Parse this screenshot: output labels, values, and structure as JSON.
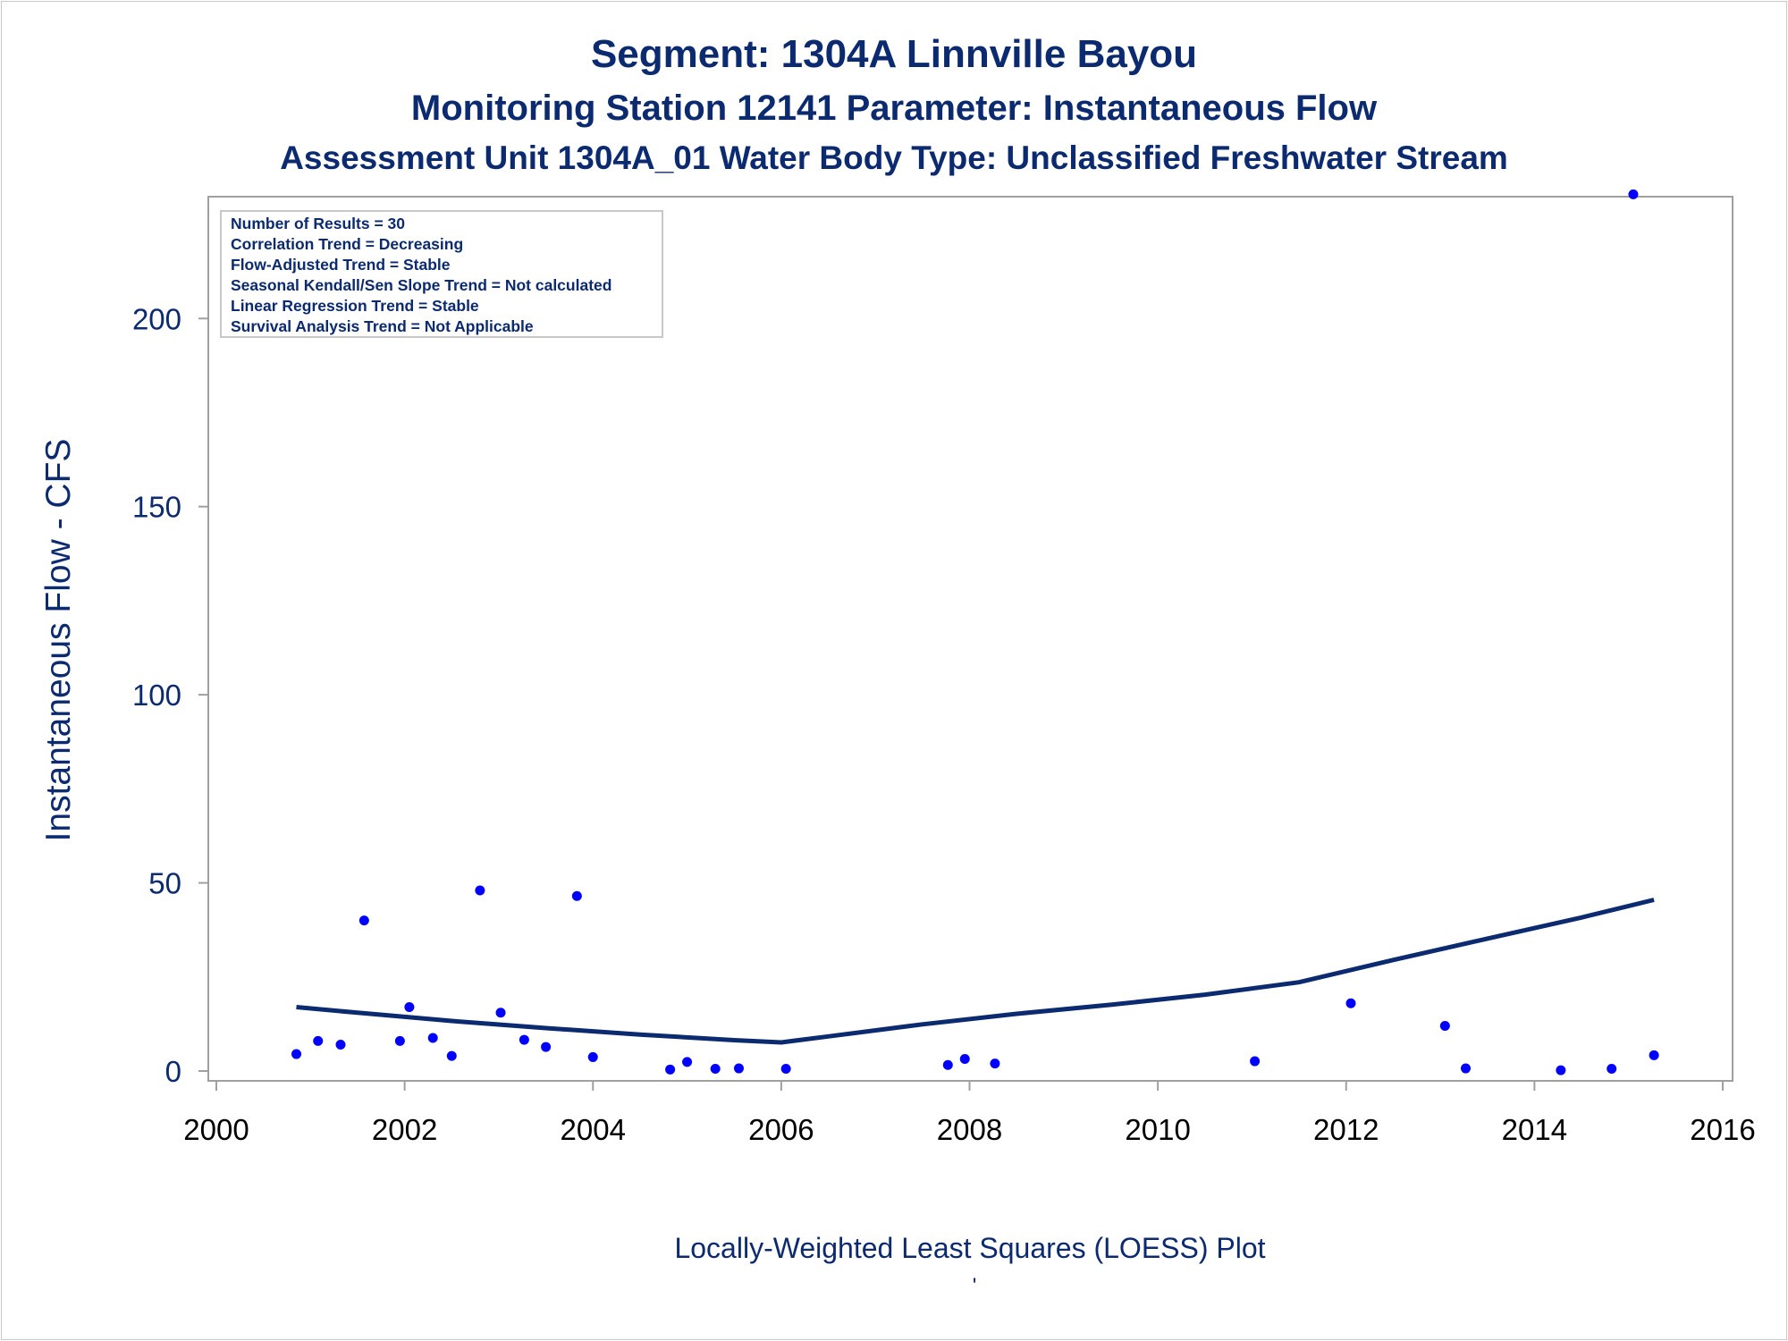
{
  "titles": {
    "line1": "Segment: 1304A  Linnville Bayou",
    "line2": "Monitoring Station 12141 Parameter: Instantaneous Flow",
    "line3": "Assessment Unit 1304A_01   Water Body Type: Unclassified Freshwater Stream"
  },
  "footnote": "Locally-Weighted Least Squares (LOESS) Plot",
  "footmark": "'",
  "colors": {
    "text": "#0b2a6f",
    "points": "#0000ff",
    "line": "#0b2a6f",
    "frame": "#a0a0a0"
  },
  "chart_data": {
    "type": "scatter",
    "ylabel": "Instantaneous Flow - CFS",
    "xlabel": "",
    "xlim": [
      2000,
      2016
    ],
    "ylim": [
      0,
      230
    ],
    "xticks": [
      2000,
      2002,
      2004,
      2006,
      2008,
      2010,
      2012,
      2014,
      2016
    ],
    "yticks": [
      0,
      50,
      100,
      150,
      200
    ],
    "grid": false,
    "legend": "none",
    "annotations": [
      "Number of Results = 30",
      "Correlation Trend = Decreasing",
      "Flow-Adjusted Trend = Stable",
      "Seasonal Kendall/Sen Slope Trend = Not calculated",
      "Linear Regression Trend = Stable",
      "Survival Analysis Trend = Not Applicable"
    ],
    "series": [
      {
        "kind": "points",
        "x": [
          2000.85,
          2001.08,
          2001.32,
          2001.57,
          2001.95,
          2002.05,
          2002.3,
          2002.5,
          2002.8,
          2003.02,
          2003.27,
          2003.5,
          2003.83,
          2004.0,
          2004.82,
          2005.0,
          2005.3,
          2005.55,
          2006.05,
          2007.77,
          2007.95,
          2008.27,
          2011.03,
          2012.05,
          2013.05,
          2013.27,
          2014.28,
          2014.82,
          2015.05,
          2015.27
        ],
        "y": [
          4.5,
          8,
          7,
          40,
          8,
          17,
          8.8,
          4,
          48,
          15.5,
          8.3,
          6.4,
          46.5,
          3.7,
          0.4,
          2.4,
          0.6,
          0.7,
          0.6,
          1.6,
          3.2,
          2,
          2.6,
          18,
          12,
          0.7,
          0.2,
          0.6,
          233,
          4.2
        ]
      },
      {
        "kind": "loess",
        "x": [
          2000.85,
          2001.5,
          2002.5,
          2003.5,
          2004.5,
          2005.5,
          2006.0,
          2006.5,
          2007.5,
          2008.5,
          2009.5,
          2010.5,
          2011.5,
          2012.5,
          2013.5,
          2014.5,
          2015.27
        ],
        "y": [
          17,
          15.5,
          13.3,
          11.4,
          9.7,
          8.2,
          7.6,
          9.2,
          12.4,
          15.2,
          17.6,
          20.3,
          23.6,
          29.5,
          35.2,
          40.8,
          45.5
        ]
      }
    ]
  }
}
